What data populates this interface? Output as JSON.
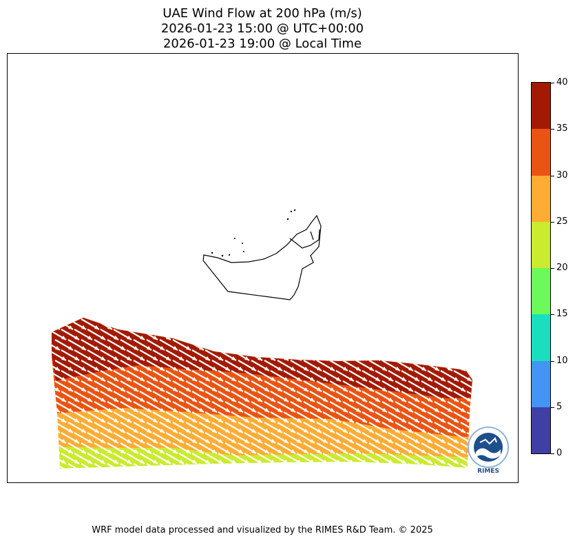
{
  "title": {
    "line1": "UAE Wind Flow at 200 hPa (m/s)",
    "line2": "2026-01-23 15:00 @ UTC+00:00",
    "line3": "2026-01-23 19:00 @ Local Time"
  },
  "colorbar": {
    "min": 0,
    "max": 40,
    "levels": [
      {
        "from": 0,
        "to": 5,
        "color": "#3f3fa6"
      },
      {
        "from": 5,
        "to": 10,
        "color": "#4394f5"
      },
      {
        "from": 10,
        "to": 15,
        "color": "#1adfbf"
      },
      {
        "from": 15,
        "to": 20,
        "color": "#6cfa5a"
      },
      {
        "from": 20,
        "to": 25,
        "color": "#caeb2e"
      },
      {
        "from": 25,
        "to": 30,
        "color": "#ffac35"
      },
      {
        "from": 30,
        "to": 35,
        "color": "#ea5413"
      },
      {
        "from": 35,
        "to": 40,
        "color": "#a21a02"
      }
    ],
    "tick_labels": [
      "0",
      "5",
      "10",
      "15",
      "20",
      "25",
      "30",
      "35",
      "40"
    ]
  },
  "logo": {
    "label": "RIMES"
  },
  "footer": "WRF model data processed and visualized by the RIMES R&D Team. © 2025"
}
